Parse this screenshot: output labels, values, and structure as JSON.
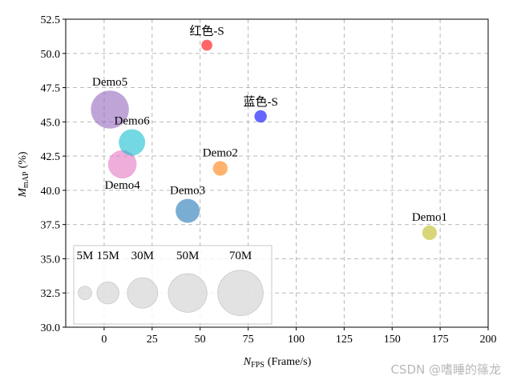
{
  "chart_data": {
    "type": "scatter",
    "xlabel_main": "N",
    "xlabel_sub": "FPS",
    "xlabel_unit": "(Frame/s)",
    "ylabel_main": "M",
    "ylabel_sub": "mAP",
    "ylabel_unit": "(%)",
    "xlim": [
      -20,
      200
    ],
    "ylim": [
      30.0,
      52.5
    ],
    "xticks": [
      0,
      25,
      50,
      75,
      100,
      125,
      150,
      175,
      200
    ],
    "yticks": [
      30.0,
      32.5,
      35.0,
      37.5,
      40.0,
      42.5,
      45.0,
      47.5,
      50.0,
      52.5
    ],
    "grid": true,
    "points": [
      {
        "name": "Demo1",
        "x": 169.5,
        "y": 36.9,
        "params_m": 6,
        "color": "#bcbd22",
        "label_pos": "above"
      },
      {
        "name": "Demo2",
        "x": 60.5,
        "y": 41.6,
        "params_m": 6,
        "color": "#ff7f0e",
        "label_pos": "above"
      },
      {
        "name": "Demo3",
        "x": 43.5,
        "y": 38.5,
        "params_m": 18,
        "color": "#1f77b4",
        "label_pos": "above"
      },
      {
        "name": "Demo4",
        "x": 9.5,
        "y": 41.9,
        "params_m": 26,
        "color": "#e377c2",
        "label_pos": "below"
      },
      {
        "name": "Demo5",
        "x": 3.0,
        "y": 45.9,
        "params_m": 48,
        "color": "#9467bd",
        "label_pos": "above"
      },
      {
        "name": "Demo6",
        "x": 14.5,
        "y": 43.5,
        "params_m": 22,
        "color": "#17becf",
        "label_pos": "above"
      },
      {
        "name": "红色-S",
        "x": 53.5,
        "y": 50.6,
        "params_m": 3,
        "color": "#ff0000",
        "label_pos": "above"
      },
      {
        "name": "蓝色-S",
        "x": 81.5,
        "y": 45.4,
        "params_m": 4,
        "color": "#0000ff",
        "label_pos": "above"
      }
    ],
    "size_legend": [
      {
        "label": "5M",
        "params_m": 5,
        "x": -10,
        "y": 32.5
      },
      {
        "label": "15M",
        "params_m": 15,
        "x": 2,
        "y": 32.5
      },
      {
        "label": "30M",
        "params_m": 30,
        "x": 20,
        "y": 32.5
      },
      {
        "label": "50M",
        "params_m": 50,
        "x": 43.5,
        "y": 32.5
      },
      {
        "label": "70M",
        "params_m": 70,
        "x": 71,
        "y": 32.5
      }
    ]
  },
  "watermark": "CSDN @嗜睡的篠龙"
}
